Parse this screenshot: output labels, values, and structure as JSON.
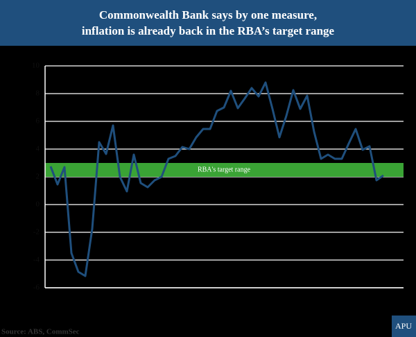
{
  "chart_data": {
    "type": "line",
    "title": [
      "Commonwealth Bank says by one measure,",
      "inflation is already back in the RBA’s target range"
    ],
    "source": "Source: ABS, CommSec",
    "target_range": [
      2,
      3
    ],
    "target_label": "RBA's target range",
    "target_color": "#3aa335",
    "ylim": [
      -6,
      10
    ],
    "yticks": [
      -6,
      -4,
      -2,
      0,
      2,
      4,
      6,
      8,
      10
    ],
    "grid": true,
    "series": [
      {
        "color": "#1f4f7d",
        "values": [
          2.75,
          1.45,
          2.7,
          -3.5,
          -4.85,
          -5.15,
          -1.75,
          4.5,
          3.65,
          5.7,
          2.0,
          0.95,
          3.6,
          1.55,
          1.25,
          1.75,
          2.0,
          3.3,
          3.5,
          4.15,
          4.0,
          4.85,
          5.45,
          5.45,
          6.75,
          7.0,
          8.2,
          6.95,
          7.65,
          8.4,
          7.8,
          8.8,
          6.9,
          4.85,
          6.4,
          8.25,
          6.9,
          7.85,
          5.25,
          3.3,
          3.6,
          3.3,
          3.3,
          4.4,
          5.45,
          3.95,
          4.2,
          1.75,
          2.1
        ]
      }
    ]
  },
  "logo": "APU"
}
